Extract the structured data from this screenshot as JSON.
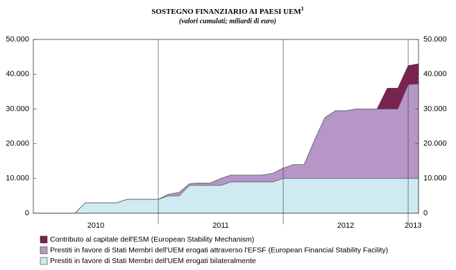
{
  "chart_data": {
    "type": "stacked_area",
    "title": "SOSTEGNO FINANZIARIO AI PAESI UEM",
    "title_note": "1",
    "subtitle": "(valori cumulati; miliardi di euro)",
    "x": [
      2010,
      2010.083,
      2010.167,
      2010.25,
      2010.333,
      2010.417,
      2010.5,
      2010.583,
      2010.667,
      2010.75,
      2010.833,
      2010.917,
      2011,
      2011.083,
      2011.167,
      2011.25,
      2011.333,
      2011.417,
      2011.5,
      2011.583,
      2011.667,
      2011.75,
      2011.833,
      2011.917,
      2012,
      2012.083,
      2012.167,
      2012.25,
      2012.333,
      2012.417,
      2012.5,
      2012.583,
      2012.667,
      2012.75,
      2012.833,
      2012.917,
      2013,
      2013.083
    ],
    "xlim": [
      2010,
      2013.083
    ],
    "xticks": [
      {
        "value": 2010.5,
        "label": "2010"
      },
      {
        "value": 2011.5,
        "label": "2011"
      },
      {
        "value": 2012.5,
        "label": "2012"
      },
      {
        "value": 2013.04,
        "label": "2013"
      }
    ],
    "xgrid": [
      2011,
      2012,
      2013
    ],
    "ylim": [
      0,
      50000
    ],
    "yticks": [
      0,
      {
        "value": 10000,
        "label": "10.000"
      },
      {
        "value": 20000,
        "label": "20.000"
      },
      {
        "value": 30000,
        "label": "30.000"
      },
      {
        "value": 40000,
        "label": "40.000"
      },
      {
        "value": 50000,
        "label": "50.000"
      }
    ],
    "y2lim": [
      0,
      50000
    ],
    "y2ticks": [
      0,
      {
        "value": 10000,
        "label": "10.000"
      },
      {
        "value": 20000,
        "label": "20.000"
      },
      {
        "value": 30000,
        "label": "30.000"
      },
      {
        "value": 40000,
        "label": "40.000"
      },
      {
        "value": 50000,
        "label": "50.000"
      }
    ],
    "series": [
      {
        "name": "Contributo al capitale dell'ESM (European Stability Mechanism)",
        "color": "#7b2350",
        "values": [
          0,
          0,
          0,
          0,
          0,
          0,
          0,
          0,
          0,
          0,
          0,
          0,
          0,
          0,
          0,
          0,
          0,
          0,
          0,
          0,
          0,
          0,
          0,
          0,
          0,
          0,
          0,
          0,
          0,
          0,
          0,
          0,
          0,
          0,
          6000,
          6000,
          5500,
          5800
        ]
      },
      {
        "name": "Prestiti in favore di Stati Membri dell'UEM erogati attraverso l'EFSF (European Financial Stability Facility)",
        "color": "#b596c6",
        "values": [
          0,
          0,
          0,
          0,
          0,
          0,
          0,
          0,
          0,
          0,
          0,
          0,
          0,
          500,
          1000,
          500,
          700,
          700,
          2000,
          2000,
          2000,
          2000,
          2000,
          2500,
          3000,
          4000,
          4000,
          11000,
          17500,
          19500,
          19500,
          20000,
          20000,
          20000,
          20000,
          20000,
          27000,
          27200
        ]
      },
      {
        "name": "Prestiti in favore di Stati Membri dell'UEM erogati bilateralmente",
        "color": "#cfebf1",
        "values": [
          0,
          0,
          0,
          0,
          0,
          3000,
          3000,
          3000,
          3000,
          4000,
          4000,
          4000,
          4000,
          5000,
          5000,
          8000,
          8000,
          8000,
          8000,
          9000,
          9000,
          9000,
          9000,
          9000,
          10000,
          10000,
          10000,
          10000,
          10000,
          10000,
          10000,
          10000,
          10000,
          10000,
          10000,
          10000,
          10000,
          10000
        ]
      }
    ]
  }
}
